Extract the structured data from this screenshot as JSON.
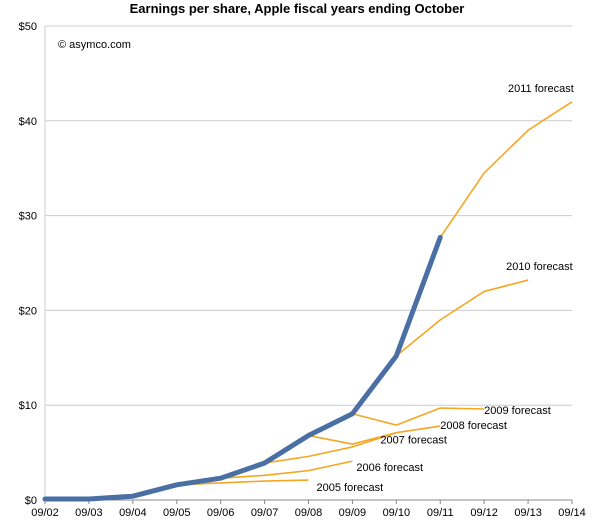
{
  "chart_data": {
    "type": "line",
    "title": "Earnings per share, Apple fiscal years ending October",
    "credit": "© asymco.com",
    "x": [
      "09/02",
      "09/03",
      "09/04",
      "09/05",
      "09/06",
      "09/07",
      "09/08",
      "09/09",
      "09/10",
      "09/11",
      "09/12",
      "09/13",
      "09/14"
    ],
    "y_ticks": [
      "$0",
      "$10",
      "$20",
      "$30",
      "$40",
      "$50"
    ],
    "ylim": [
      0,
      50
    ],
    "grid": true,
    "colors": {
      "actual": "#4a6fa5",
      "forecast": "#f5a623",
      "grid": "#cccccc"
    },
    "actual": {
      "x": [
        "09/02",
        "09/03",
        "09/04",
        "09/05",
        "09/06",
        "09/07",
        "09/08",
        "09/09",
        "09/10",
        "09/11"
      ],
      "values": [
        0.1,
        0.1,
        0.4,
        1.6,
        2.3,
        3.9,
        6.8,
        9.1,
        15.2,
        27.7
      ]
    },
    "series": [
      {
        "name": "2005 forecast",
        "x": [
          "09/05",
          "09/06",
          "09/07",
          "09/08"
        ],
        "values": [
          1.6,
          1.8,
          2.0,
          2.1
        ]
      },
      {
        "name": "2006 forecast",
        "x": [
          "09/06",
          "09/07",
          "09/08",
          "09/09"
        ],
        "values": [
          2.3,
          2.6,
          3.1,
          4.1
        ]
      },
      {
        "name": "2007 forecast",
        "x": [
          "09/07",
          "09/08",
          "09/09",
          "09/10"
        ],
        "values": [
          3.9,
          4.6,
          5.6,
          7.1
        ]
      },
      {
        "name": "2008 forecast",
        "x": [
          "09/08",
          "09/09",
          "09/10",
          "09/11"
        ],
        "values": [
          6.8,
          5.9,
          7.1,
          7.8
        ]
      },
      {
        "name": "2009 forecast",
        "x": [
          "09/09",
          "09/10",
          "09/11",
          "09/12"
        ],
        "values": [
          9.1,
          7.9,
          9.7,
          9.6
        ]
      },
      {
        "name": "2010 forecast",
        "x": [
          "09/10",
          "09/11",
          "09/12",
          "09/13"
        ],
        "values": [
          15.2,
          19.0,
          22.0,
          23.2
        ]
      },
      {
        "name": "2011 forecast",
        "x": [
          "09/11",
          "09/12",
          "09/13",
          "09/14"
        ],
        "values": [
          27.7,
          34.5,
          39.0,
          42.0
        ]
      }
    ]
  }
}
